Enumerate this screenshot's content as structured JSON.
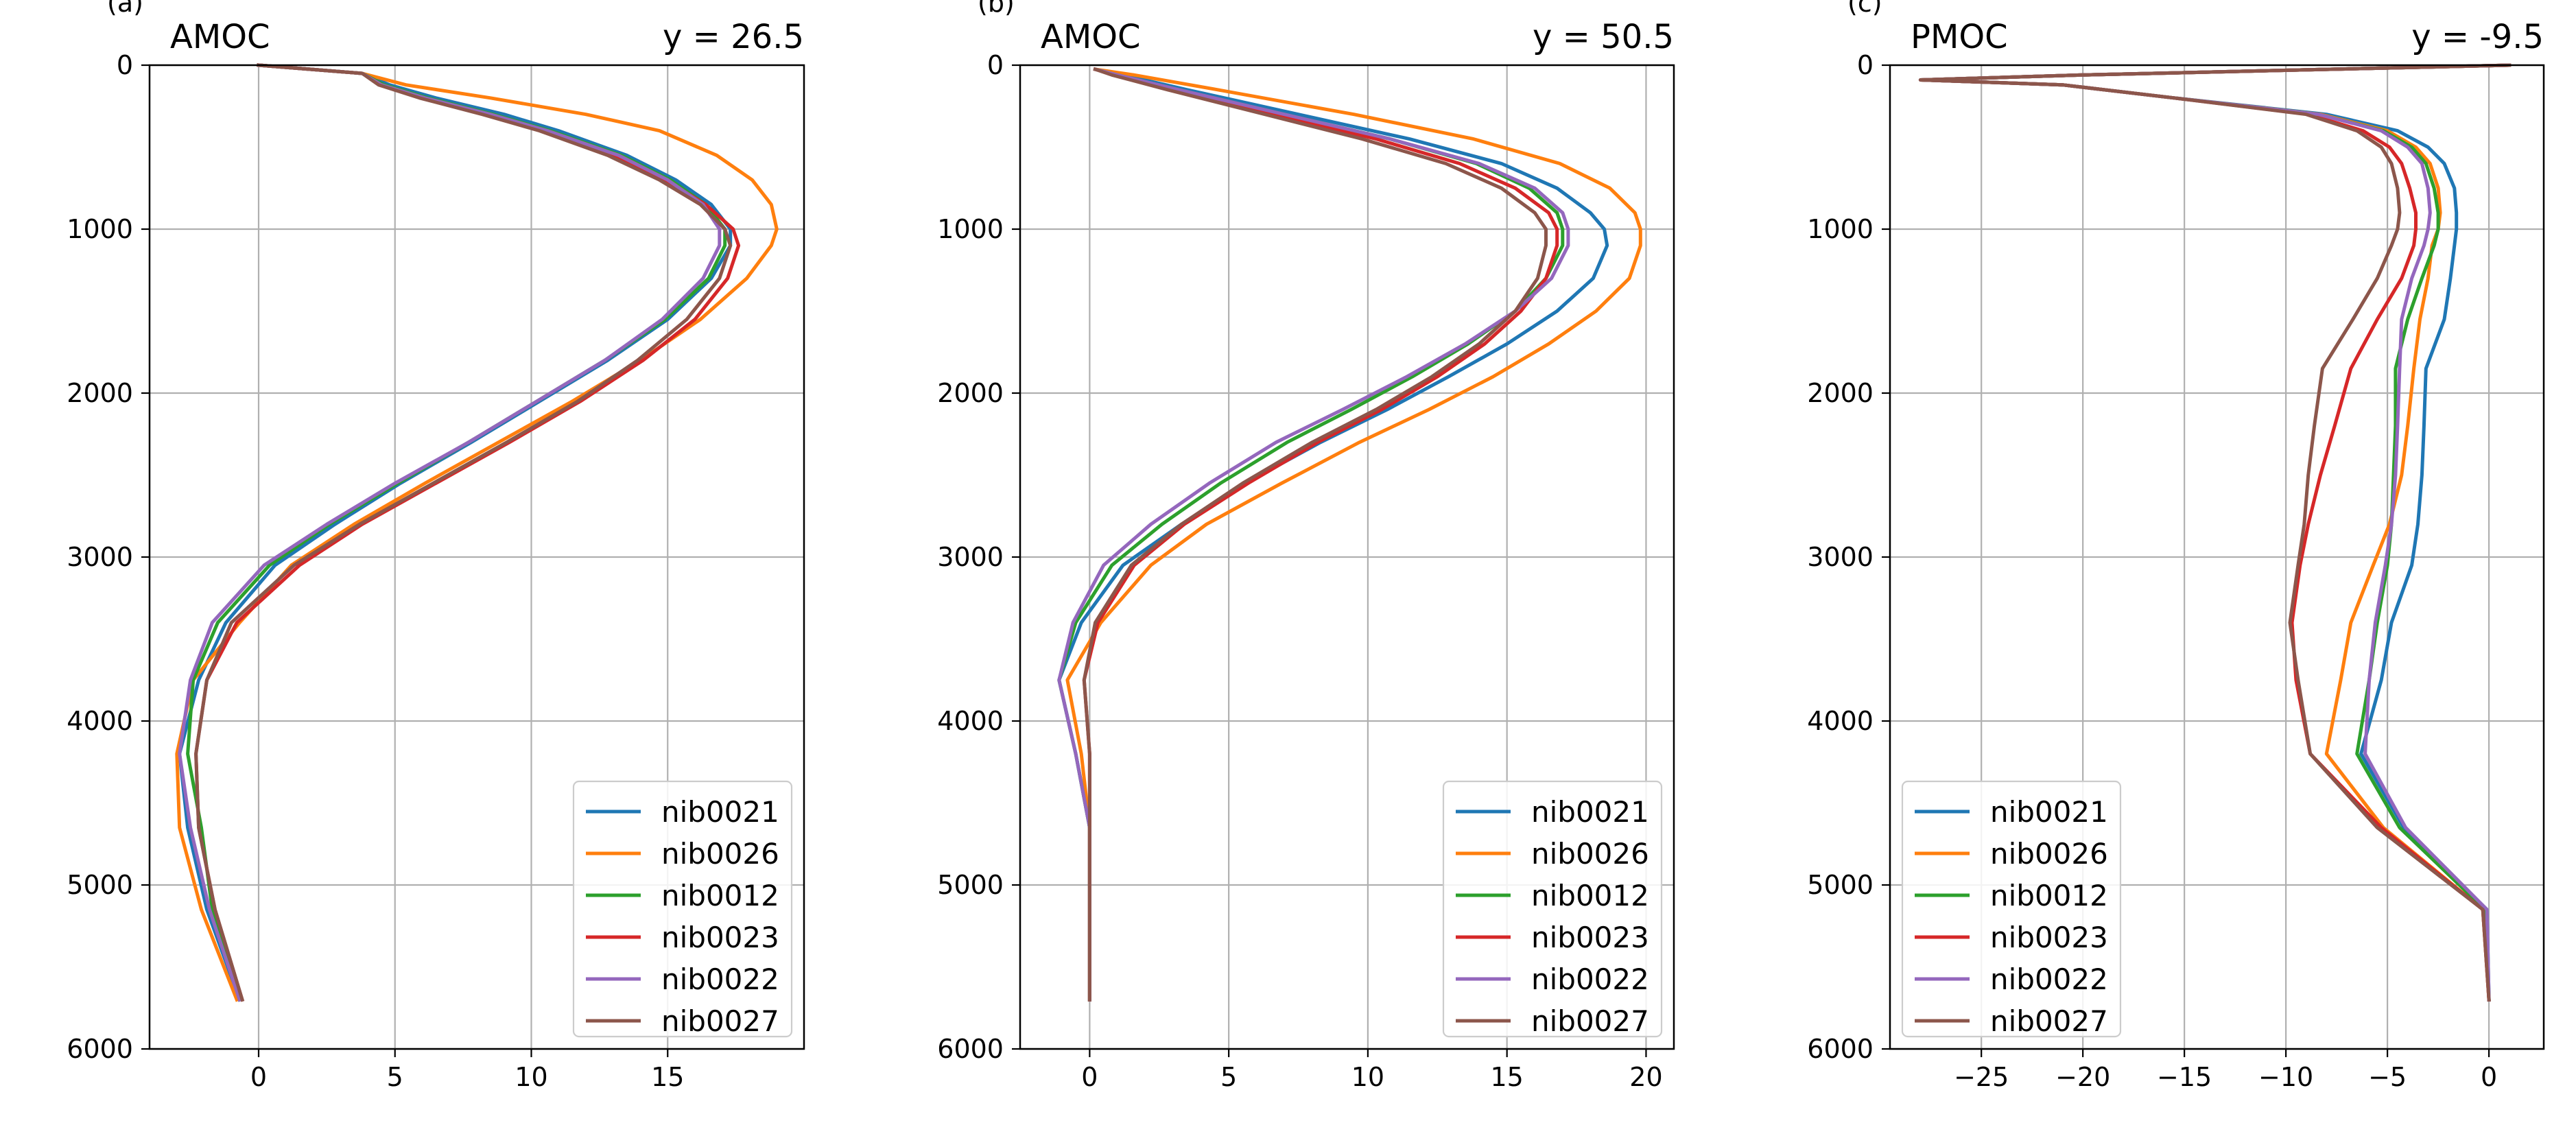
{
  "colors": {
    "nib0021": "#1f77b4",
    "nib0026": "#ff7f0e",
    "nib0012": "#2ca02c",
    "nib0023": "#d62728",
    "nib0022": "#9467bd",
    "nib0027": "#8c564b",
    "grid": "#b0b0b0"
  },
  "chart_data": [
    {
      "type": "line",
      "panel_label": "(a)",
      "title": "AMOC",
      "title_right": "y = 26.5",
      "xlim": [
        -4,
        20
      ],
      "ylim": [
        6000,
        0
      ],
      "y_inverted": true,
      "grid": true,
      "legend_position": "lower-right",
      "xticks": [
        0,
        5,
        10,
        15
      ],
      "xtick_labels": [
        "0",
        "5",
        "10",
        "15"
      ],
      "yticks": [
        0,
        1000,
        2000,
        3000,
        4000,
        5000,
        6000
      ],
      "ytick_labels": [
        "0",
        "1000",
        "2000",
        "3000",
        "4000",
        "5000",
        "6000"
      ],
      "depth": [
        0,
        50,
        120,
        200,
        300,
        400,
        550,
        700,
        850,
        1000,
        1100,
        1300,
        1550,
        1800,
        2050,
        2300,
        2550,
        2800,
        3050,
        3400,
        3750,
        4200,
        4650,
        5150,
        5700
      ],
      "series": [
        {
          "name": "nib0021",
          "values": [
            0,
            3.8,
            4.8,
            6.5,
            9,
            11,
            13.5,
            15.3,
            16.6,
            17.3,
            17.3,
            16.6,
            15,
            12.8,
            10.3,
            7.8,
            5.2,
            2.8,
            0.6,
            -1.2,
            -2.2,
            -2.9,
            -2.6,
            -1.9,
            -0.7
          ]
        },
        {
          "name": "nib0026",
          "values": [
            0,
            3.8,
            5.4,
            8.5,
            12,
            14.7,
            16.8,
            18.1,
            18.8,
            19,
            18.8,
            17.9,
            16.2,
            14,
            11.5,
            8.8,
            6.1,
            3.5,
            1.2,
            -0.7,
            -2.4,
            -3,
            -2.9,
            -2.1,
            -0.8
          ]
        },
        {
          "name": "nib0012",
          "values": [
            0,
            3.8,
            4.6,
            6.2,
            8.6,
            10.7,
            13.3,
            15.1,
            16.4,
            17.1,
            17.1,
            16.5,
            14.9,
            12.7,
            10.2,
            7.7,
            5.1,
            2.6,
            0.4,
            -1.5,
            -2.4,
            -2.6,
            -2.1,
            -1.7,
            -0.7
          ]
        },
        {
          "name": "nib0023",
          "values": [
            0,
            3.8,
            4.5,
            6,
            8.4,
            10.5,
            13,
            14.9,
            16.4,
            17.4,
            17.6,
            17.2,
            16,
            14.1,
            11.8,
            9.2,
            6.5,
            3.8,
            1.5,
            -0.8,
            -1.9,
            -2.3,
            -2.2,
            -1.6,
            -0.6
          ]
        },
        {
          "name": "nib0022",
          "values": [
            0,
            3.8,
            4.5,
            6.1,
            8.5,
            10.6,
            13.2,
            15,
            16.3,
            16.9,
            16.9,
            16.3,
            14.8,
            12.7,
            10.2,
            7.7,
            5,
            2.5,
            0.2,
            -1.7,
            -2.5,
            -2.9,
            -2.5,
            -1.8,
            -0.7
          ]
        },
        {
          "name": "nib0027",
          "values": [
            0,
            3.8,
            4.4,
            5.9,
            8.2,
            10.3,
            12.8,
            14.7,
            16.2,
            17.1,
            17.3,
            16.9,
            15.7,
            13.9,
            11.7,
            9.1,
            6.4,
            3.7,
            1.3,
            -1,
            -1.9,
            -2.3,
            -2.2,
            -1.6,
            -0.6
          ]
        }
      ]
    },
    {
      "type": "line",
      "panel_label": "(b)",
      "title": "AMOC",
      "title_right": "y = 50.5",
      "xlim": [
        -2.5,
        21
      ],
      "ylim": [
        6000,
        0
      ],
      "y_inverted": true,
      "grid": true,
      "legend_position": "lower-right",
      "xticks": [
        0,
        5,
        10,
        15,
        20
      ],
      "xtick_labels": [
        "0",
        "5",
        "10",
        "15",
        "20"
      ],
      "yticks": [
        0,
        1000,
        2000,
        3000,
        4000,
        5000,
        6000
      ],
      "ytick_labels": [
        "0",
        "1000",
        "2000",
        "3000",
        "4000",
        "5000",
        "6000"
      ],
      "depth": [
        25,
        60,
        150,
        300,
        450,
        600,
        750,
        900,
        1000,
        1100,
        1300,
        1500,
        1700,
        1900,
        2100,
        2300,
        2550,
        2800,
        3050,
        3400,
        3750,
        4200,
        4650,
        5150,
        5700
      ],
      "series": [
        {
          "name": "nib0021",
          "values": [
            0.2,
            1.2,
            3.5,
            7.5,
            11.5,
            14.8,
            16.8,
            18,
            18.5,
            18.6,
            18.1,
            16.8,
            15,
            12.9,
            10.7,
            8.3,
            5.6,
            3.3,
            1.2,
            -0.3,
            -1.1,
            -0.5,
            0,
            0,
            0
          ]
        },
        {
          "name": "nib0026",
          "values": [
            0.2,
            1.6,
            4.6,
            9.5,
            13.8,
            16.9,
            18.7,
            19.6,
            19.8,
            19.8,
            19.4,
            18.2,
            16.5,
            14.5,
            12.2,
            9.7,
            6.9,
            4.2,
            2.2,
            0.4,
            -0.8,
            -0.3,
            0,
            0,
            0
          ]
        },
        {
          "name": "nib0012",
          "values": [
            0.2,
            1,
            3.2,
            7,
            10.8,
            13.9,
            15.8,
            16.8,
            17,
            17,
            16.4,
            15.3,
            13.6,
            11.6,
            9.4,
            7.1,
            4.7,
            2.6,
            0.8,
            -0.5,
            -1.1,
            -0.5,
            0,
            0,
            0
          ]
        },
        {
          "name": "nib0023",
          "values": [
            0.2,
            0.9,
            3,
            6.6,
            10.3,
            13.3,
            15.3,
            16.5,
            16.8,
            16.8,
            16.4,
            15.5,
            14.2,
            12.5,
            10.5,
            8.2,
            5.7,
            3.4,
            1.6,
            0.3,
            -0.2,
            0,
            0,
            0,
            0
          ]
        },
        {
          "name": "nib0022",
          "values": [
            0.2,
            1,
            3.2,
            7,
            10.8,
            14,
            16,
            17,
            17.2,
            17.2,
            16.6,
            15.3,
            13.5,
            11.4,
            9.1,
            6.7,
            4.3,
            2.2,
            0.5,
            -0.6,
            -1.1,
            -0.5,
            0,
            0,
            0
          ]
        },
        {
          "name": "nib0027",
          "values": [
            0.2,
            0.8,
            2.8,
            6.3,
            9.8,
            12.8,
            14.8,
            16,
            16.4,
            16.4,
            16.1,
            15.3,
            14,
            12.3,
            10.3,
            8,
            5.5,
            3.3,
            1.5,
            0.2,
            -0.2,
            0,
            0,
            0,
            0
          ]
        }
      ]
    },
    {
      "type": "line",
      "panel_label": "(c)",
      "title": "PMOC",
      "title_right": "y = -9.5",
      "xlim": [
        -29.5,
        2.7
      ],
      "ylim": [
        6000,
        0
      ],
      "y_inverted": true,
      "grid": true,
      "legend_position": "lower-left",
      "xticks": [
        -25,
        -20,
        -15,
        -10,
        -5,
        0
      ],
      "xtick_labels": [
        "−25",
        "−20",
        "−15",
        "−10",
        "−5",
        "0"
      ],
      "yticks": [
        0,
        1000,
        2000,
        3000,
        4000,
        5000,
        6000
      ],
      "ytick_labels": [
        "0",
        "1000",
        "2000",
        "3000",
        "4000",
        "5000",
        "6000"
      ],
      "depth": [
        0,
        60,
        90,
        120,
        200,
        300,
        400,
        500,
        600,
        750,
        900,
        1000,
        1100,
        1300,
        1550,
        1850,
        2200,
        2500,
        2800,
        3050,
        3400,
        3750,
        4200,
        4650,
        5150,
        5700
      ],
      "series": [
        {
          "name": "nib0021",
          "values": [
            1,
            -20,
            -28,
            -21,
            -15.5,
            -8,
            -4.5,
            -3,
            -2.2,
            -1.7,
            -1.6,
            -1.6,
            -1.7,
            -1.9,
            -2.2,
            -3.1,
            -3.2,
            -3.3,
            -3.5,
            -3.8,
            -4.8,
            -5.3,
            -6.3,
            -4.2,
            -0.1,
            0
          ]
        },
        {
          "name": "nib0026",
          "values": [
            1,
            -20,
            -28,
            -21,
            -15.5,
            -8.3,
            -5,
            -3.6,
            -2.9,
            -2.5,
            -2.4,
            -2.5,
            -2.8,
            -3,
            -3.4,
            -3.7,
            -4,
            -4.3,
            -4.9,
            -5.7,
            -6.8,
            -7.3,
            -8,
            -5.2,
            -0.3,
            0
          ]
        },
        {
          "name": "nib0012",
          "values": [
            1,
            -20,
            -28,
            -21,
            -15.5,
            -8.4,
            -5.2,
            -3.8,
            -3.1,
            -2.7,
            -2.5,
            -2.5,
            -2.7,
            -3.3,
            -4,
            -4.6,
            -4.6,
            -4.7,
            -4.8,
            -5,
            -5.5,
            -5.9,
            -6.5,
            -4.4,
            -0.2,
            0
          ]
        },
        {
          "name": "nib0023",
          "values": [
            1,
            -20,
            -28,
            -21,
            -15.5,
            -8.9,
            -6.2,
            -4.9,
            -4.3,
            -3.9,
            -3.6,
            -3.6,
            -3.7,
            -4.3,
            -5.5,
            -6.8,
            -7.6,
            -8.3,
            -8.9,
            -9.3,
            -9.7,
            -9.5,
            -8.8,
            -5.3,
            -0.3,
            0
          ]
        },
        {
          "name": "nib0022",
          "values": [
            1,
            -20,
            -28,
            -21,
            -15.5,
            -8.4,
            -5.3,
            -4,
            -3.3,
            -3,
            -2.9,
            -3,
            -3.2,
            -3.8,
            -4.3,
            -4.4,
            -4.5,
            -4.6,
            -4.8,
            -5.1,
            -5.6,
            -5.9,
            -6.1,
            -4.1,
            -0.1,
            0
          ]
        },
        {
          "name": "nib0027",
          "values": [
            1,
            -20,
            -28,
            -21,
            -15.5,
            -9,
            -6.5,
            -5.3,
            -4.8,
            -4.5,
            -4.4,
            -4.5,
            -4.8,
            -5.5,
            -6.7,
            -8.2,
            -8.6,
            -8.9,
            -9.1,
            -9.4,
            -9.8,
            -9.4,
            -8.8,
            -5.5,
            -0.3,
            0
          ]
        }
      ]
    }
  ]
}
